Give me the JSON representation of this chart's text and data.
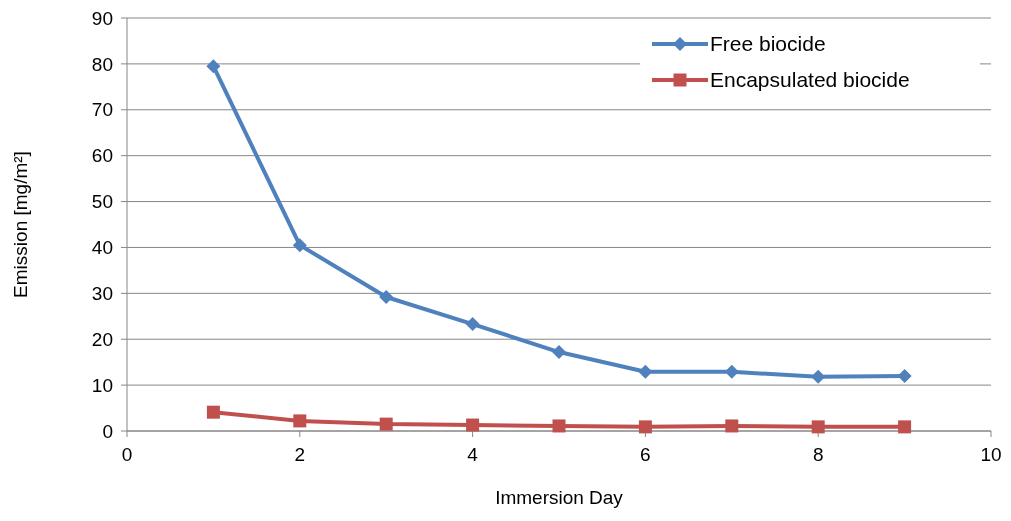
{
  "chart_data": {
    "type": "line",
    "xlabel": "Immersion Day",
    "ylabel": "Emission [mg/m²]",
    "x": [
      1,
      2,
      3,
      4,
      5,
      6,
      7,
      8,
      9
    ],
    "series": [
      {
        "name": "Free biocide",
        "color": "#4f81bd",
        "marker": "diamond",
        "values": [
          79.5,
          40.5,
          29.2,
          23.3,
          17.2,
          12.9,
          12.9,
          11.8,
          12.0
        ]
      },
      {
        "name": "Encapsulated biocide",
        "color": "#c0504d",
        "marker": "square",
        "values": [
          4.1,
          2.2,
          1.5,
          1.3,
          1.1,
          0.9,
          1.1,
          0.9,
          0.9
        ]
      }
    ],
    "xlim": [
      0,
      10
    ],
    "xticks": [
      0,
      2,
      4,
      6,
      8,
      10
    ],
    "ylim": [
      0,
      90
    ],
    "yticks": [
      0,
      10,
      20,
      30,
      40,
      50,
      60,
      70,
      80,
      90
    ],
    "grid": "y",
    "legend": "top right",
    "line_style": "solid"
  }
}
